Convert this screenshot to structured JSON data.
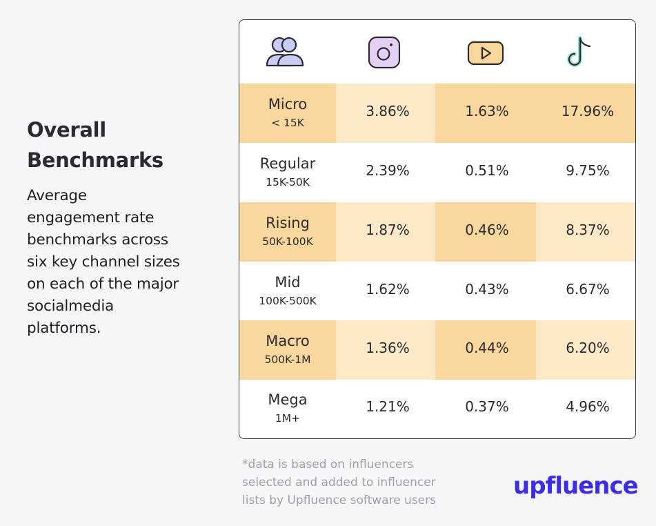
{
  "heading": {
    "line1": "Overall",
    "line2": "Benchmarks"
  },
  "description_lines": [
    "Average",
    "engagement rate",
    "benchmarks across",
    "six key channel sizes",
    "on each of the major",
    "socialmedia",
    "platforms."
  ],
  "icons": {
    "col0": "people-icon",
    "col1": "instagram-icon",
    "col2": "youtube-icon",
    "col3": "tiktok-icon"
  },
  "colors": {
    "highlight_dark": "#fad79d",
    "highlight_light": "#fde9c8",
    "brand": "#3c2de8",
    "brand_dot": "#f2b14a"
  },
  "footnote_lines": [
    "*data is based on influencers",
    "selected and added to influencer",
    "lists by Upfluence software users"
  ],
  "logo": {
    "text": "upfluence"
  },
  "chart_data": {
    "type": "table",
    "columns": [
      "Instagram",
      "YouTube",
      "TikTok"
    ],
    "rows": [
      {
        "tier": "Micro",
        "range": "< 15K",
        "values": [
          "3.86%",
          "1.63%",
          "17.96%"
        ]
      },
      {
        "tier": "Regular",
        "range": "15K-50K",
        "values": [
          "2.39%",
          "0.51%",
          "9.75%"
        ]
      },
      {
        "tier": "Rising",
        "range": "50K-100K",
        "values": [
          "1.87%",
          "0.46%",
          "8.37%"
        ]
      },
      {
        "tier": "Mid",
        "range": "100K-500K",
        "values": [
          "1.62%",
          "0.43%",
          "6.67%"
        ]
      },
      {
        "tier": "Macro",
        "range": "500K-1M",
        "values": [
          "1.36%",
          "0.44%",
          "6.20%"
        ]
      },
      {
        "tier": "Mega",
        "range": "1M+",
        "values": [
          "1.21%",
          "0.37%",
          "4.96%"
        ]
      }
    ]
  }
}
